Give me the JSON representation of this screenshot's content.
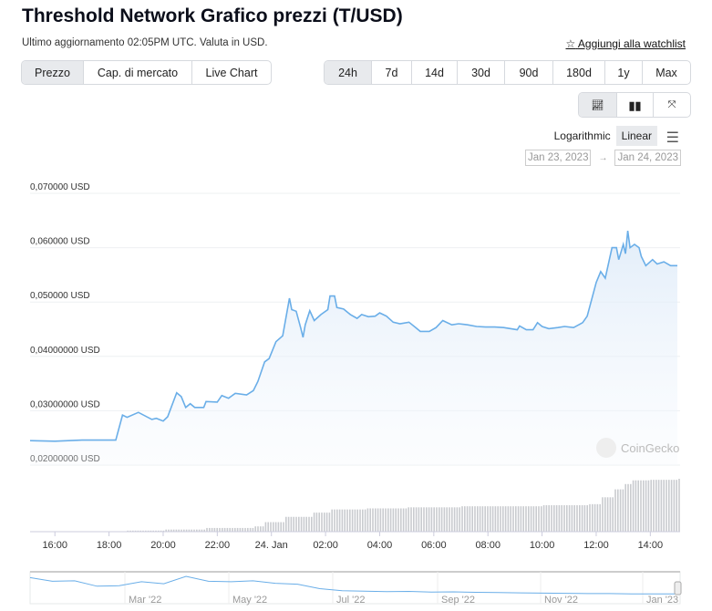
{
  "title": "Threshold Network Grafico prezzi (T/USD)",
  "subtitle": "Ultimo aggiornamento 02:05PM UTC. Valuta in USD.",
  "watchlist": {
    "icon": "star-outline-icon",
    "label": "Aggiungi alla watchlist"
  },
  "chart_tabs": [
    {
      "label": "Prezzo",
      "active": true
    },
    {
      "label": "Cap. di mercato"
    },
    {
      "label": "Live Chart"
    }
  ],
  "ranges": [
    {
      "label": "24h",
      "active": true
    },
    {
      "label": "7d"
    },
    {
      "label": "14d"
    },
    {
      "label": "30d"
    },
    {
      "label": "90d"
    },
    {
      "label": "180d"
    },
    {
      "label": "1y"
    },
    {
      "label": "Max"
    }
  ],
  "view_icons": [
    "line-chart-icon",
    "candlestick-icon",
    "fullscreen-icon"
  ],
  "scale": {
    "log": "Logarithmic",
    "linear": "Linear",
    "active": "Linear"
  },
  "date_from": "Jan 23, 2023",
  "date_to": "Jan 24, 2023",
  "arrow": "→",
  "watermark": "CoinGecko",
  "colors": {
    "line": "#6aaee8",
    "volume": "#c9cbcf"
  },
  "chart_data": {
    "type": "area",
    "ylim": [
      0.02,
      0.07
    ],
    "yticks": [
      {
        "v": 0.07,
        "label": "0,070000 USD"
      },
      {
        "v": 0.06,
        "label": "0,060000 USD"
      },
      {
        "v": 0.05,
        "label": "0,050000 USD"
      },
      {
        "v": 0.04,
        "label": "0,04000000 USD"
      },
      {
        "v": 0.03,
        "label": "0,03000000 USD"
      },
      {
        "v": 0.02,
        "label": "0,02000000 USD"
      }
    ],
    "xrange": [
      "Jan 23 15:05",
      "Jan 24 15:06"
    ],
    "xticks": [
      {
        "t": "Jan 23 16:00",
        "label": "16:00"
      },
      {
        "t": "Jan 23 18:00",
        "label": "18:00"
      },
      {
        "t": "Jan 23 20:00",
        "label": "20:00"
      },
      {
        "t": "Jan 23 22:00",
        "label": "22:00"
      },
      {
        "t": "Jan 24 00:00",
        "label": "24. Jan"
      },
      {
        "t": "Jan 24 02:00",
        "label": "02:00"
      },
      {
        "t": "Jan 24 04:00",
        "label": "04:00"
      },
      {
        "t": "Jan 24 06:00",
        "label": "06:00"
      },
      {
        "t": "Jan 24 08:00",
        "label": "08:00"
      },
      {
        "t": "Jan 24 10:00",
        "label": "10:00"
      },
      {
        "t": "Jan 24 12:00",
        "label": "12:00"
      },
      {
        "t": "Jan 24 14:00",
        "label": "14:00"
      }
    ],
    "series": [
      {
        "values": [
          [
            "Jan 23 15:05",
            0.0245
          ],
          [
            "Jan 23 16:00",
            0.0244
          ],
          [
            "Jan 23 17:00",
            0.0246
          ],
          [
            "Jan 23 18:15",
            0.0246
          ],
          [
            "Jan 23 18:30",
            0.0292
          ],
          [
            "Jan 23 18:40",
            0.0288
          ],
          [
            "Jan 23 19:05",
            0.0297
          ],
          [
            "Jan 23 19:35",
            0.0284
          ],
          [
            "Jan 23 19:45",
            0.0286
          ],
          [
            "Jan 23 20:00",
            0.0281
          ],
          [
            "Jan 23 20:10",
            0.0289
          ],
          [
            "Jan 23 20:30",
            0.0333
          ],
          [
            "Jan 23 20:40",
            0.0326
          ],
          [
            "Jan 23 20:50",
            0.0306
          ],
          [
            "Jan 23 21:00",
            0.0313
          ],
          [
            "Jan 23 21:10",
            0.0306
          ],
          [
            "Jan 23 21:30",
            0.0306
          ],
          [
            "Jan 23 21:35",
            0.0317
          ],
          [
            "Jan 23 22:00",
            0.0316
          ],
          [
            "Jan 23 22:10",
            0.0328
          ],
          [
            "Jan 23 22:25",
            0.0323
          ],
          [
            "Jan 23 22:40",
            0.0332
          ],
          [
            "Jan 23 23:05",
            0.0329
          ],
          [
            "Jan 23 23:20",
            0.0337
          ],
          [
            "Jan 23 23:30",
            0.0354
          ],
          [
            "Jan 23 23:45",
            0.039
          ],
          [
            "Jan 23 23:55",
            0.0396
          ],
          [
            "Jan 24 00:10",
            0.0427
          ],
          [
            "Jan 24 00:25",
            0.0438
          ],
          [
            "Jan 24 00:40",
            0.0507
          ],
          [
            "Jan 24 00:45",
            0.0486
          ],
          [
            "Jan 24 00:55",
            0.0483
          ],
          [
            "Jan 24 01:05",
            0.0452
          ],
          [
            "Jan 24 01:10",
            0.0435
          ],
          [
            "Jan 24 01:15",
            0.0458
          ],
          [
            "Jan 24 01:25",
            0.0484
          ],
          [
            "Jan 24 01:35",
            0.0466
          ],
          [
            "Jan 24 01:50",
            0.0477
          ],
          [
            "Jan 24 02:05",
            0.0486
          ],
          [
            "Jan 24 02:10",
            0.0511
          ],
          [
            "Jan 24 02:20",
            0.0511
          ],
          [
            "Jan 24 02:25",
            0.049
          ],
          [
            "Jan 24 02:40",
            0.0487
          ],
          [
            "Jan 24 02:55",
            0.0477
          ],
          [
            "Jan 24 03:10",
            0.047
          ],
          [
            "Jan 24 03:20",
            0.0477
          ],
          [
            "Jan 24 03:35",
            0.0473
          ],
          [
            "Jan 24 03:50",
            0.0474
          ],
          [
            "Jan 24 04:00",
            0.048
          ],
          [
            "Jan 24 04:15",
            0.0474
          ],
          [
            "Jan 24 04:30",
            0.0463
          ],
          [
            "Jan 24 04:45",
            0.046
          ],
          [
            "Jan 24 05:05",
            0.0463
          ],
          [
            "Jan 24 05:20",
            0.0453
          ],
          [
            "Jan 24 05:30",
            0.0446
          ],
          [
            "Jan 24 05:50",
            0.0446
          ],
          [
            "Jan 24 06:05",
            0.0453
          ],
          [
            "Jan 24 06:20",
            0.0466
          ],
          [
            "Jan 24 06:40",
            0.0458
          ],
          [
            "Jan 24 06:55",
            0.046
          ],
          [
            "Jan 24 07:15",
            0.0458
          ],
          [
            "Jan 24 07:35",
            0.0455
          ],
          [
            "Jan 24 07:55",
            0.0454
          ],
          [
            "Jan 24 08:15",
            0.0454
          ],
          [
            "Jan 24 08:35",
            0.0453
          ],
          [
            "Jan 24 09:05",
            0.0449
          ],
          [
            "Jan 24 09:10",
            0.0456
          ],
          [
            "Jan 24 09:25",
            0.0449
          ],
          [
            "Jan 24 09:40",
            0.0449
          ],
          [
            "Jan 24 09:50",
            0.0462
          ],
          [
            "Jan 24 10:00",
            0.0455
          ],
          [
            "Jan 24 10:15",
            0.0451
          ],
          [
            "Jan 24 10:35",
            0.0453
          ],
          [
            "Jan 24 10:50",
            0.0455
          ],
          [
            "Jan 24 11:10",
            0.0453
          ],
          [
            "Jan 24 11:30",
            0.0462
          ],
          [
            "Jan 24 11:40",
            0.0474
          ],
          [
            "Jan 24 12:00",
            0.0536
          ],
          [
            "Jan 24 12:10",
            0.0556
          ],
          [
            "Jan 24 12:20",
            0.0544
          ],
          [
            "Jan 24 12:35",
            0.06
          ],
          [
            "Jan 24 12:45",
            0.06
          ],
          [
            "Jan 24 12:50",
            0.0578
          ],
          [
            "Jan 24 13:00",
            0.0606
          ],
          [
            "Jan 24 13:05",
            0.0589
          ],
          [
            "Jan 24 13:10",
            0.0631
          ],
          [
            "Jan 24 13:15",
            0.06
          ],
          [
            "Jan 24 13:25",
            0.0606
          ],
          [
            "Jan 24 13:35",
            0.06
          ],
          [
            "Jan 24 13:40",
            0.0584
          ],
          [
            "Jan 24 13:50",
            0.0567
          ],
          [
            "Jan 24 14:05",
            0.0578
          ],
          [
            "Jan 24 14:15",
            0.057
          ],
          [
            "Jan 24 14:30",
            0.0574
          ],
          [
            "Jan 24 14:45",
            0.0567
          ],
          [
            "Jan 24 15:00",
            0.0567
          ]
        ]
      }
    ],
    "volume_relative": [
      [
        "Jan 23 15:05",
        0
      ],
      [
        "Jan 23 18:40",
        0.02
      ],
      [
        "Jan 23 20:00",
        0.04
      ],
      [
        "Jan 23 21:30",
        0.07
      ],
      [
        "Jan 23 23:20",
        0.1
      ],
      [
        "Jan 23 23:45",
        0.18
      ],
      [
        "Jan 24 00:30",
        0.28
      ],
      [
        "Jan 24 01:30",
        0.36
      ],
      [
        "Jan 24 02:10",
        0.42
      ],
      [
        "Jan 24 03:30",
        0.44
      ],
      [
        "Jan 24 05:00",
        0.46
      ],
      [
        "Jan 24 07:00",
        0.48
      ],
      [
        "Jan 24 10:00",
        0.5
      ],
      [
        "Jan 24 11:40",
        0.52
      ],
      [
        "Jan 24 12:10",
        0.65
      ],
      [
        "Jan 24 12:40",
        0.8
      ],
      [
        "Jan 24 13:00",
        0.9
      ],
      [
        "Jan 24 13:20",
        0.97
      ],
      [
        "Jan 24 14:00",
        0.98
      ],
      [
        "Jan 24 15:00",
        1.0
      ]
    ],
    "navigator": {
      "labels": [
        "Mar '22",
        "May '22",
        "Jul '22",
        "Sep '22",
        "Nov '22",
        "Jan '23"
      ],
      "values": [
        0.95,
        0.8,
        0.82,
        0.6,
        0.62,
        0.78,
        0.7,
        1.0,
        0.8,
        0.78,
        0.82,
        0.72,
        0.68,
        0.5,
        0.42,
        0.4,
        0.38,
        0.39,
        0.36,
        0.37,
        0.35,
        0.34,
        0.33,
        0.32,
        0.31,
        0.3,
        0.3,
        0.29,
        0.29,
        0.29
      ]
    }
  }
}
